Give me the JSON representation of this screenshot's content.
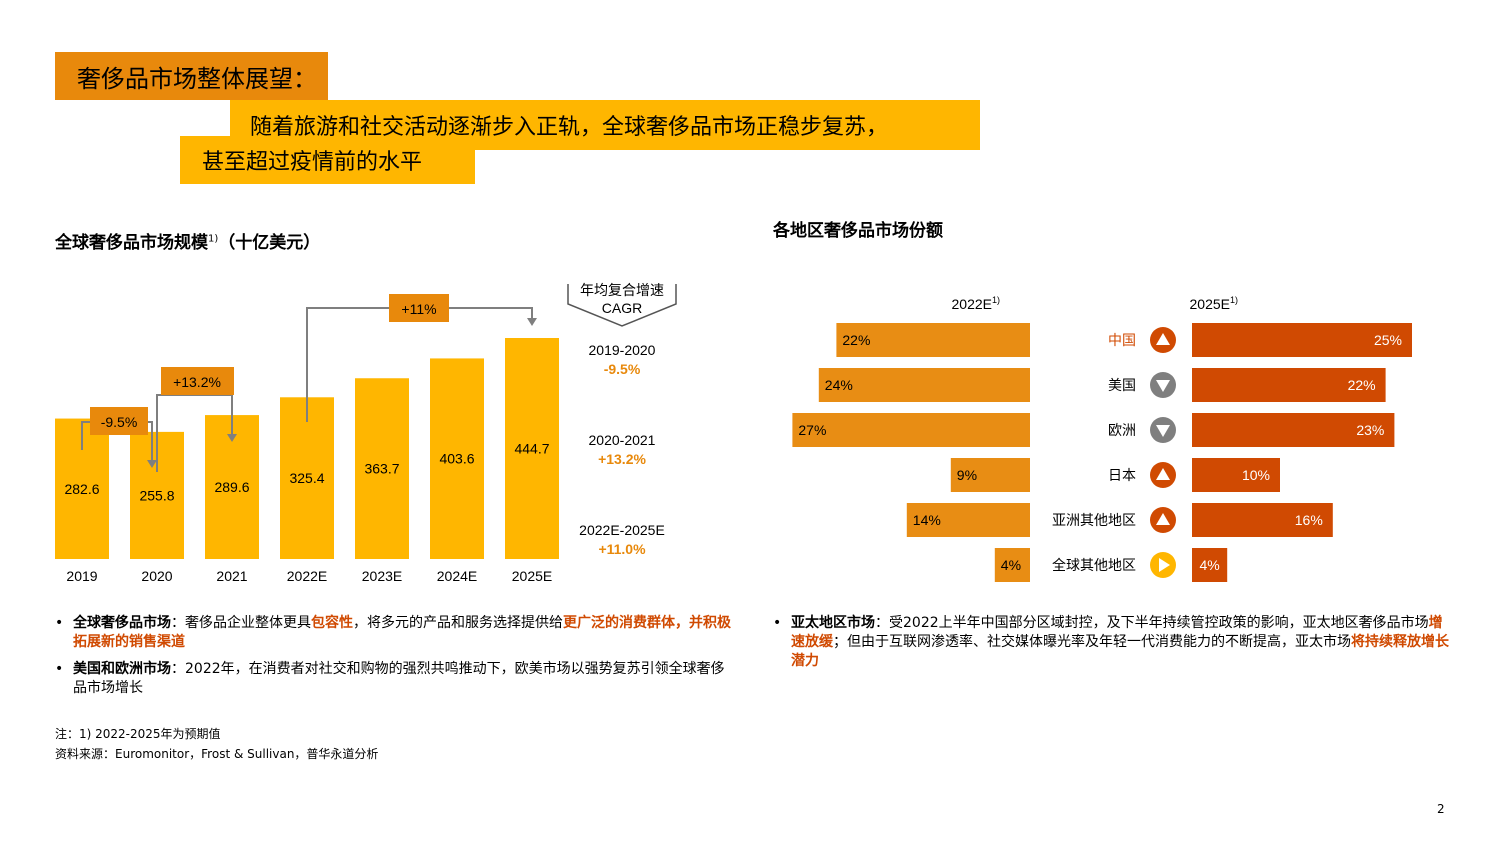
{
  "header": {
    "title": "奢侈品市场整体展望：",
    "subtitle_line1": "随着旅游和社交活动逐渐步入正轨，全球奢侈品市场正稳步复苏，",
    "subtitle_line2": "甚至超过疫情前的水平"
  },
  "left": {
    "title": "全球奢侈品市场规模",
    "title_sup": "1)",
    "title_unit": "（十亿美元）",
    "cagr_header_line1": "年均复合增速",
    "cagr_header_line2": "CAGR",
    "cagr_items": [
      {
        "period": "2019-2020",
        "value": "-9.5%"
      },
      {
        "period": "2020-2021",
        "value": "+13.2%"
      },
      {
        "period": "2022E-2025E",
        "value": "+11.0%"
      }
    ],
    "growth_tags": [
      "-9.5%",
      "+13.2%",
      "+11%"
    ]
  },
  "right": {
    "title": "各地区奢侈品市场份额",
    "col_2022": "2022E",
    "col_2025": "2025E",
    "col_sup": "1)"
  },
  "chart_data": [
    {
      "type": "bar",
      "title": "全球奢侈品市场规模1)（十亿美元）",
      "categories": [
        "2019",
        "2020",
        "2021",
        "2022E",
        "2023E",
        "2024E",
        "2025E"
      ],
      "values": [
        282.6,
        255.8,
        289.6,
        325.4,
        363.7,
        403.6,
        444.7
      ],
      "value_labels": [
        "282.6",
        "255.8",
        "289.6",
        "325.4",
        "363.7",
        "403.6",
        "444.7"
      ],
      "color": "#FFB600"
    },
    {
      "type": "bar",
      "title": "各地区奢侈品市场份额",
      "categories": [
        "中国",
        "美国",
        "欧洲",
        "日本",
        "亚洲其他地区",
        "全球其他地区"
      ],
      "series": [
        {
          "name": "2022E",
          "values": [
            22,
            24,
            27,
            9,
            14,
            4
          ],
          "labels": [
            "22%",
            "24%",
            "27%",
            "9%",
            "14%",
            "4%"
          ],
          "color": "#E88D14"
        },
        {
          "name": "2025E",
          "values": [
            25,
            22,
            23,
            10,
            16,
            4
          ],
          "labels": [
            "25%",
            "22%",
            "23%",
            "10%",
            "16%",
            "4%"
          ],
          "color": "#D04A02"
        }
      ],
      "trend": [
        "up",
        "down",
        "down",
        "up",
        "up",
        "flat"
      ],
      "highlight_category": "中国"
    }
  ],
  "colors": {
    "orange_dark": "#E8890C",
    "yellow": "#FFB600",
    "orange_mid": "#E88D14",
    "red_orange": "#D04A02",
    "arrow_gray": "#7F7F7F",
    "grey_line": "#7F7F7F"
  },
  "bullets_left": [
    {
      "label": "全球奢侈品市场",
      "sep": "：",
      "t1": "奢侈品企业整体更具",
      "h1": "包容性",
      "t2": "，将多元的产品和服务选择提供给",
      "h2": "更广泛的消费群体，并积极拓展新的销售渠道",
      "t3": ""
    },
    {
      "label": "美国和欧洲市场",
      "sep": "：",
      "t1": "2022年，在消费者对社交和购物的强烈共鸣推动下，欧美市场以强势复苏引领全球奢侈品市场增长",
      "h1": "",
      "t2": "",
      "h2": "",
      "t3": ""
    }
  ],
  "bullets_right": [
    {
      "label": "亚太地区市场",
      "sep": "：",
      "t1": "受2022上半年中国部分区域封控，及下半年持续管控政策的影响，亚太地区奢侈品市场",
      "h1": "增速放缓",
      "t2": "；但由于互联网渗透率、社交媒体曝光率及年轻一代消费能力的不断提高，亚太市场",
      "h2": "将持续释放增长潜力",
      "t3": ""
    }
  ],
  "notes": {
    "note1": "注：1) 2022-2025年为预期值",
    "source": "资料来源：Euromonitor，Frost & Sullivan，普华永道分析"
  },
  "page_number": "2"
}
